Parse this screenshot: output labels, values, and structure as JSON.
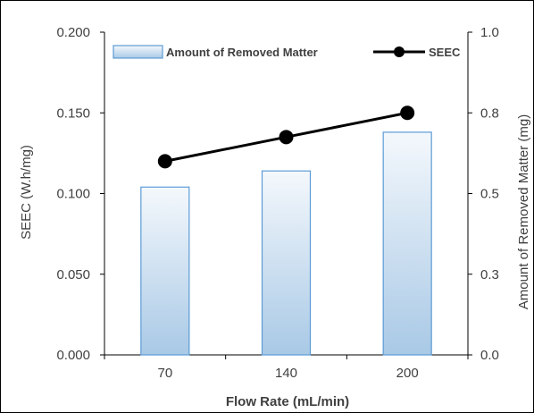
{
  "chart_data": {
    "type": "bar",
    "categories": [
      "70",
      "140",
      "200"
    ],
    "xlabel": "Flow Rate (mL/min)",
    "series": [
      {
        "name": "Amount of Removed Matter",
        "type": "bar",
        "axis": "right",
        "values": [
          0.52,
          0.57,
          0.69
        ]
      },
      {
        "name": "SEEC",
        "type": "line",
        "axis": "left",
        "values": [
          0.12,
          0.135,
          0.15
        ]
      }
    ],
    "left_axis": {
      "label": "SEEC (W.h/mg)",
      "ylim": [
        0,
        0.2
      ],
      "ticks": [
        "0.000",
        "0.050",
        "0.100",
        "0.150",
        "0.200"
      ]
    },
    "right_axis": {
      "label": "Amount of Removed Matter (mg)",
      "ylim": [
        0,
        1.0
      ],
      "ticks": [
        "0.0",
        "0.3",
        "0.5",
        "0.8",
        "1.0"
      ]
    },
    "legend_position": "top",
    "grid": false,
    "colors": {
      "bar_fill_top": "#f4f8fc",
      "bar_fill_bottom": "#a9c9e6",
      "bar_stroke": "#5b9bd5",
      "line": "#000000",
      "axis": "#000000",
      "text": "#404040"
    }
  }
}
